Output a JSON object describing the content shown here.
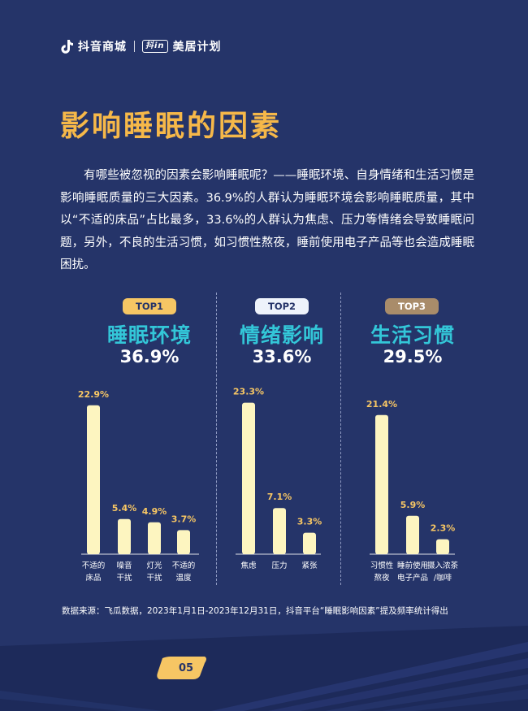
{
  "brand": {
    "name": "抖音商城",
    "badge": "抖in",
    "program": "美居计划"
  },
  "title": "影响睡眠的因素",
  "intro": "有哪些被忽视的因素会影响睡眠呢？——睡眠环境、自身情绪和生活习惯是影响睡眠质量的三大因素。36.9%的人群认为睡眠环境会影响睡眠质量，其中以“不适的床品”占比最多，33.6%的人群认为焦虑、压力等情绪会导致睡眠问题，另外，不良的生活习惯，如习惯性熬夜，睡前使用电子产品等也会造成睡眠困扰。",
  "colors": {
    "background": "#253469",
    "title": "#f6b849",
    "category": "#33c6d8",
    "bar": "#fdf5c0",
    "value_label": "#f6c664",
    "top1": "#f6c664",
    "top2": "#eef3fb",
    "top3": "#a98c6a"
  },
  "chart_data": [
    {
      "type": "bar",
      "rank": "TOP1",
      "title": "睡眠环境",
      "share": "36.9%",
      "categories": [
        "不适的\n床品",
        "噪音\n干扰",
        "灯光\n干扰",
        "不适的\n温度"
      ],
      "values": [
        22.9,
        5.4,
        4.9,
        3.7
      ],
      "value_labels": [
        "22.9%",
        "5.4%",
        "4.9%",
        "3.7%"
      ],
      "ylim": [
        0,
        25
      ]
    },
    {
      "type": "bar",
      "rank": "TOP2",
      "title": "情绪影响",
      "share": "33.6%",
      "categories": [
        "焦虑",
        "压力",
        "紧张"
      ],
      "values": [
        23.3,
        7.1,
        3.3
      ],
      "value_labels": [
        "23.3%",
        "7.1%",
        "3.3%"
      ],
      "ylim": [
        0,
        25
      ]
    },
    {
      "type": "bar",
      "rank": "TOP3",
      "title": "生活习惯",
      "share": "29.5%",
      "categories": [
        "习惯性\n熬夜",
        "睡前使用\n电子产品",
        "摄入浓茶\n/咖啡"
      ],
      "values": [
        21.4,
        5.9,
        2.3
      ],
      "value_labels": [
        "21.4%",
        "5.9%",
        "2.3%"
      ],
      "ylim": [
        0,
        25
      ]
    }
  ],
  "source": "数据来源：飞瓜数据，2023年1月1日-2023年12月31日，抖音平台“睡眠影响因素”提及频率统计得出",
  "page_number": "05"
}
